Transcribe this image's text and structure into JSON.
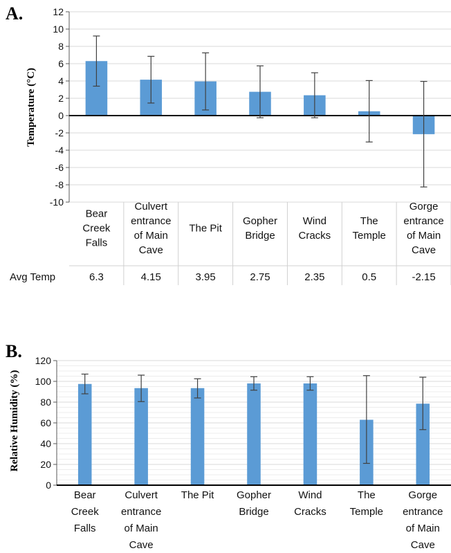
{
  "chart_data": [
    {
      "panel": "A.",
      "type": "bar",
      "ylabel": "Temperature (°C)",
      "categories": [
        [
          "Bear",
          "Creek",
          "Falls"
        ],
        [
          "Culvert",
          "entrance",
          "of Main",
          "Cave"
        ],
        [
          "The Pit"
        ],
        [
          "Gopher",
          "Bridge"
        ],
        [
          "Wind",
          "Cracks"
        ],
        [
          "The",
          "Temple"
        ],
        [
          "Gorge",
          "entrance",
          "of Main",
          "Cave"
        ]
      ],
      "values": [
        6.3,
        4.15,
        3.95,
        2.75,
        2.35,
        0.5,
        -2.15
      ],
      "error_low": [
        3.4,
        1.45,
        0.65,
        -0.25,
        -0.25,
        -3.05,
        -8.25
      ],
      "error_high": [
        9.2,
        6.85,
        7.25,
        5.75,
        4.95,
        4.05,
        3.95
      ],
      "ylim": [
        -10,
        12
      ],
      "yticks": [
        -10,
        -8,
        -6,
        -4,
        -2,
        0,
        2,
        4,
        6,
        8,
        10,
        12
      ],
      "grid": true,
      "table": {
        "row_label": "Avg Temp",
        "values": [
          "6.3",
          "4.15",
          "3.95",
          "2.75",
          "2.35",
          "0.5",
          "-2.15"
        ]
      },
      "colors": {
        "bar": "#5b9bd5",
        "grid": "#d9d9d9",
        "axis": "#000000"
      }
    },
    {
      "panel": "B.",
      "type": "bar",
      "ylabel": "Relative Humidity (%)",
      "categories": [
        [
          "Bear",
          "Creek",
          "Falls"
        ],
        [
          "Culvert",
          "entrance",
          "of Main",
          "Cave"
        ],
        [
          "The Pit"
        ],
        [
          "Gopher",
          "Bridge"
        ],
        [
          "Wind",
          "Cracks"
        ],
        [
          "The",
          "Temple"
        ],
        [
          "Gorge",
          "entrance",
          "of Main",
          "Cave"
        ]
      ],
      "values": [
        97.5,
        93.5,
        93.5,
        98,
        98,
        63,
        78.5
      ],
      "error_low": [
        88,
        80.5,
        84,
        91.5,
        91.5,
        21,
        53.5
      ],
      "error_high": [
        107,
        106,
        102.5,
        104.5,
        104.5,
        105.5,
        104
      ],
      "ylim": [
        0,
        120
      ],
      "yticks": [
        0,
        20,
        40,
        60,
        80,
        100,
        120
      ],
      "grid": true,
      "minor_gridlines": true,
      "colors": {
        "bar": "#5b9bd5",
        "grid": "#d9d9d9",
        "axis": "#000000"
      }
    }
  ]
}
